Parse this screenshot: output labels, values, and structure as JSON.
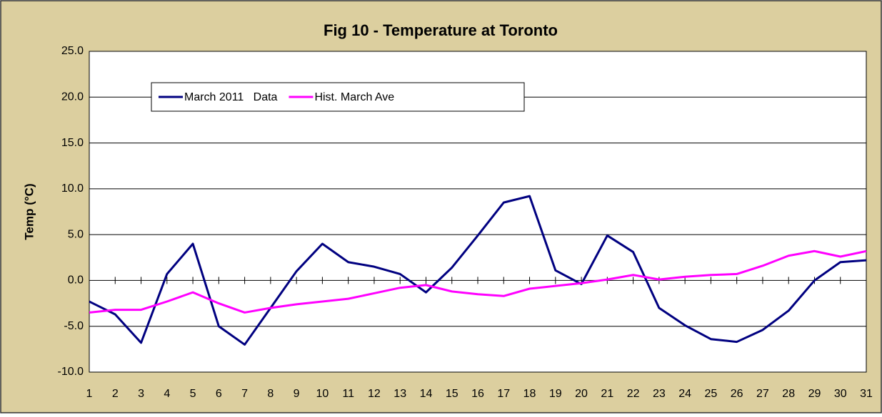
{
  "chart_data": {
    "type": "line",
    "title": "Fig 10 - Temperature at Toronto",
    "y_label": "Temp (°C)",
    "categories": [
      "1",
      "2",
      "3",
      "4",
      "5",
      "6",
      "7",
      "8",
      "9",
      "10",
      "11",
      "12",
      "13",
      "14",
      "15",
      "16",
      "17",
      "18",
      "19",
      "20",
      "21",
      "22",
      "23",
      "24",
      "25",
      "26",
      "27",
      "28",
      "29",
      "30",
      "31"
    ],
    "series": [
      {
        "name": "March 2011   Data",
        "color": "#000080",
        "values": [
          -2.3,
          -3.7,
          -6.8,
          0.7,
          4.0,
          -5.0,
          -7.0,
          -3.0,
          1.0,
          4.0,
          2.0,
          1.5,
          0.7,
          -1.3,
          1.4,
          4.9,
          8.5,
          9.2,
          1.1,
          -0.4,
          4.9,
          3.1,
          -3.0,
          -4.9,
          -6.4,
          -6.7,
          -5.4,
          -3.3,
          0.0,
          2.0,
          2.2
        ]
      },
      {
        "name": "Hist. March Ave",
        "color": "#ff00ff",
        "values": [
          -3.5,
          -3.2,
          -3.2,
          -2.3,
          -1.3,
          -2.5,
          -3.5,
          -3.0,
          -2.6,
          -2.3,
          -2.0,
          -1.4,
          -0.8,
          -0.5,
          -1.2,
          -1.5,
          -1.7,
          -0.9,
          -0.6,
          -0.3,
          0.1,
          0.6,
          0.1,
          0.4,
          0.6,
          0.7,
          1.6,
          2.7,
          3.2,
          2.6,
          3.2
        ]
      }
    ],
    "ylim": [
      -10,
      25
    ],
    "yticks": [
      {
        "value": -10,
        "label": "-10.0"
      },
      {
        "value": -5,
        "label": "-5.0"
      },
      {
        "value": 0,
        "label": "0.0"
      },
      {
        "value": 5,
        "label": "5.0"
      },
      {
        "value": 10,
        "label": "10.0"
      },
      {
        "value": 15,
        "label": "15.0"
      },
      {
        "value": 20,
        "label": "20.0"
      },
      {
        "value": 25,
        "label": "25.0"
      }
    ],
    "grid": true,
    "legend": "top-left"
  }
}
